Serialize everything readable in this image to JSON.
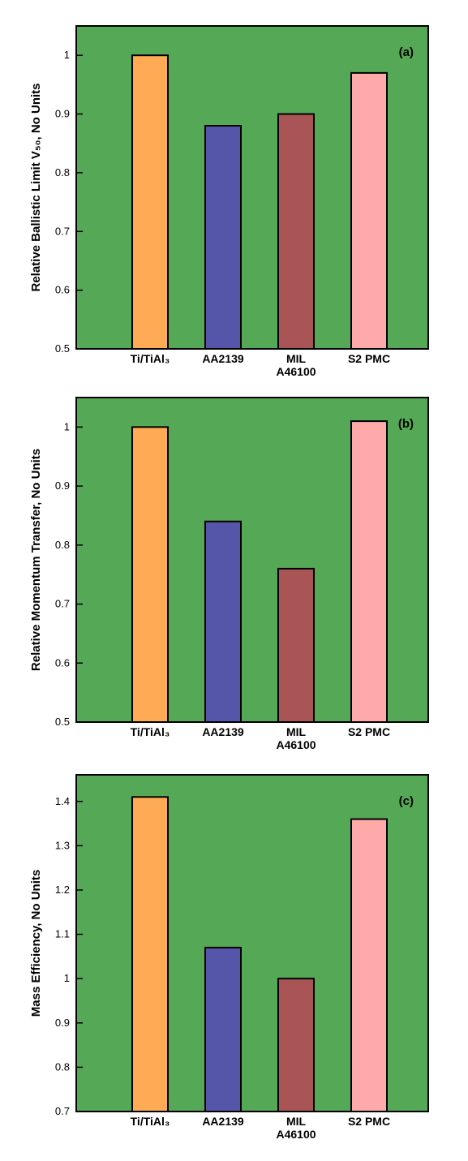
{
  "chart_data": [
    {
      "type": "bar",
      "panel_label": "(a)",
      "categories": [
        "Ti/TiAl₃",
        "AA2139",
        "MIL\nA46100",
        "S2 PMC"
      ],
      "values": [
        1.0,
        0.88,
        0.9,
        0.97
      ],
      "ylabel": "Relative Ballistic Limit V₅₀, No Units",
      "ylim": [
        0.5,
        1.05
      ],
      "yticks": [
        0.5,
        0.6,
        0.7,
        0.8,
        0.9,
        1
      ],
      "background": "#55a855",
      "bar_colors": [
        "#ffaa55",
        "#5555aa",
        "#aa5555",
        "#ffaaaa"
      ],
      "grid": false
    },
    {
      "type": "bar",
      "panel_label": "(b)",
      "categories": [
        "Ti/TiAl₃",
        "AA2139",
        "MIL\nA46100",
        "S2 PMC"
      ],
      "values": [
        1.0,
        0.84,
        0.76,
        1.01
      ],
      "ylabel": "Relative Momentum Transfer, No Units",
      "ylim": [
        0.5,
        1.05
      ],
      "yticks": [
        0.5,
        0.6,
        0.7,
        0.8,
        0.9,
        1
      ],
      "background": "#55a855",
      "bar_colors": [
        "#ffaa55",
        "#5555aa",
        "#aa5555",
        "#ffaaaa"
      ],
      "grid": false
    },
    {
      "type": "bar",
      "panel_label": "(c)",
      "categories": [
        "Ti/TiAl₃",
        "AA2139",
        "MIL\nA46100",
        "S2 PMC"
      ],
      "values": [
        1.41,
        1.07,
        1.0,
        1.36
      ],
      "ylabel": "Mass Efficiency, No Units",
      "ylim": [
        0.7,
        1.46
      ],
      "yticks": [
        0.7,
        0.8,
        0.9,
        1,
        1.1,
        1.2,
        1.3,
        1.4
      ],
      "background": "#55a855",
      "bar_colors": [
        "#ffaa55",
        "#5555aa",
        "#aa5555",
        "#ffaaaa"
      ],
      "grid": false
    }
  ]
}
